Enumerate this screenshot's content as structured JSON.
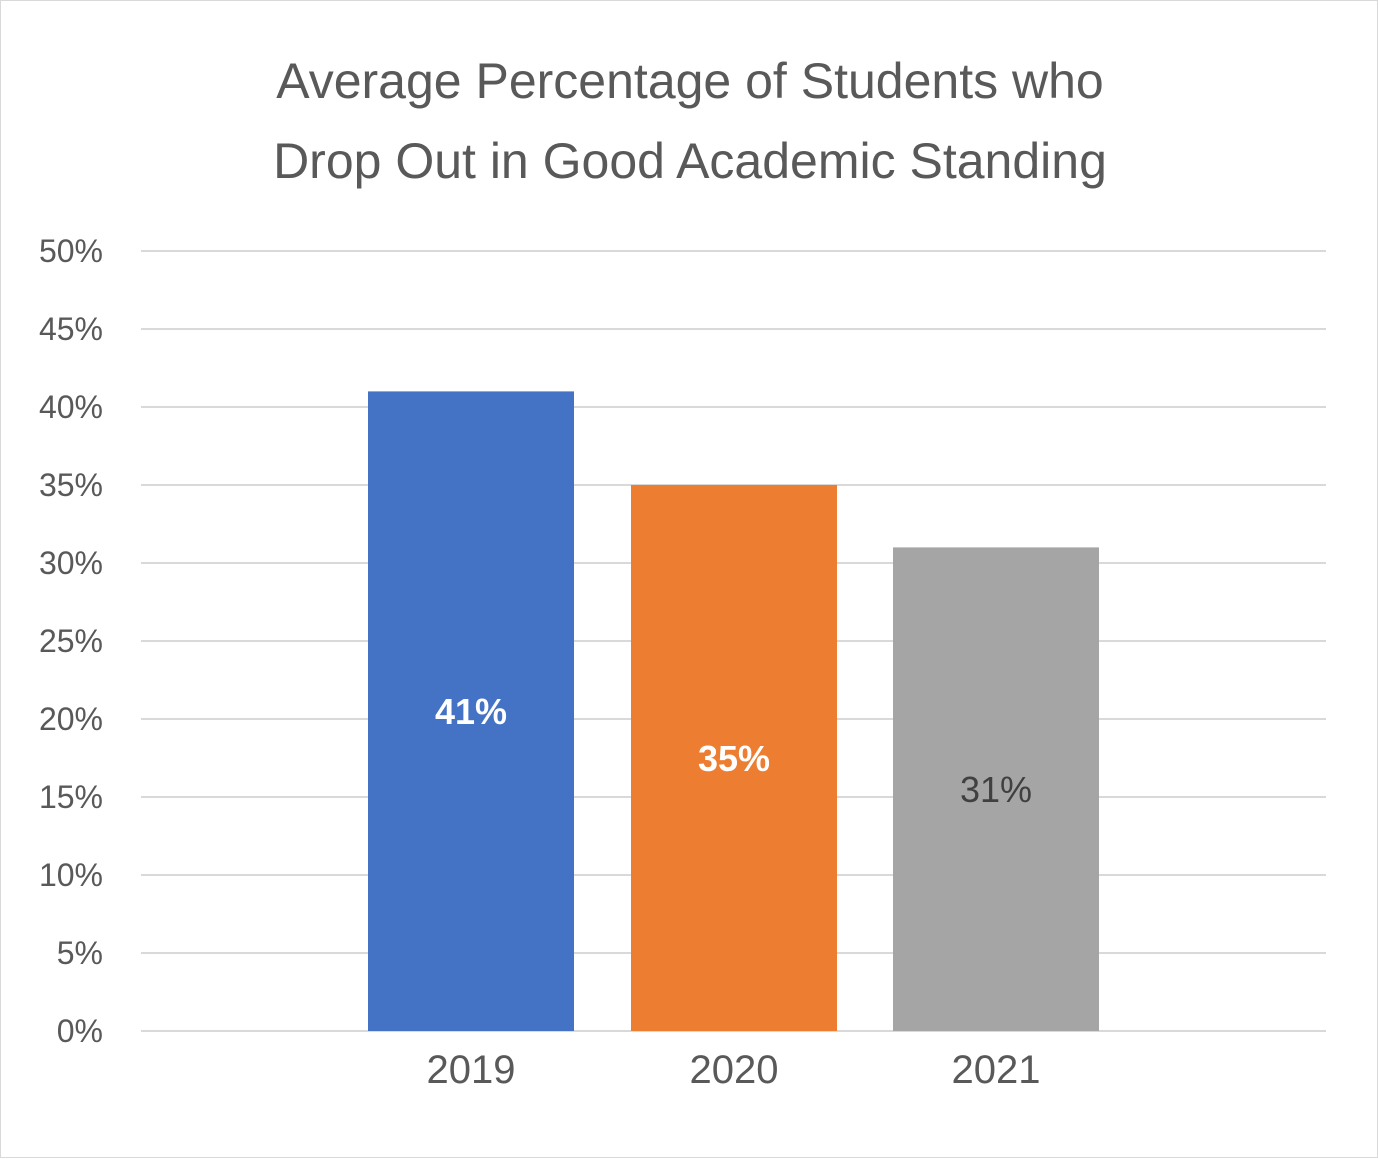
{
  "chart_data": {
    "type": "bar",
    "title_lines": [
      "Average Percentage of Students who",
      "Drop Out in Good Academic Standing"
    ],
    "categories": [
      "2019",
      "2020",
      "2021"
    ],
    "values": [
      41,
      35,
      31
    ],
    "data_labels": [
      "41%",
      "35%",
      "31%"
    ],
    "colors": [
      "#4472c4",
      "#ed7d31",
      "#a5a5a5"
    ],
    "label_colors": [
      "#ffffff",
      "#ffffff",
      "#404040"
    ],
    "label_bold": [
      true,
      true,
      false
    ],
    "ylim": [
      0,
      50
    ],
    "yticks": [
      "0%",
      "5%",
      "10%",
      "15%",
      "20%",
      "25%",
      "30%",
      "35%",
      "40%",
      "45%",
      "50%"
    ],
    "grid": true,
    "xlabel": "",
    "ylabel": ""
  }
}
